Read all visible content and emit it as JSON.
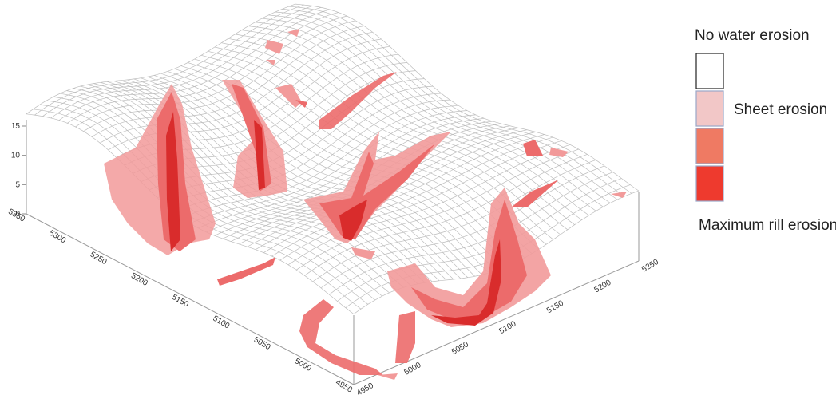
{
  "chart_data": {
    "type": "surface-3d",
    "x_ticks": [
      "5350",
      "5300",
      "5250",
      "5200",
      "5150",
      "5100",
      "5050",
      "5000",
      "4950"
    ],
    "y_ticks": [
      "4950",
      "5000",
      "5050",
      "5100",
      "5150",
      "5200",
      "5250"
    ],
    "z_ticks": [
      "0",
      "5",
      "10",
      "15"
    ],
    "zlim": [
      0,
      15
    ],
    "grid": true,
    "legend": {
      "placement": "right",
      "items": [
        {
          "label": "No water erosion",
          "color": "#ffffff"
        },
        {
          "label": "Sheet erosion",
          "color": "#f2c7c7"
        },
        {
          "label": "",
          "color": "#ef7a63"
        },
        {
          "label": "Maximum rill erosion",
          "color": "#ee3a2e"
        }
      ]
    },
    "colors": {
      "mesh": "#bdbdbd",
      "sheet": "#f29a9a",
      "moderate": "#ec6b6b",
      "rill": "#d92c2c"
    }
  }
}
